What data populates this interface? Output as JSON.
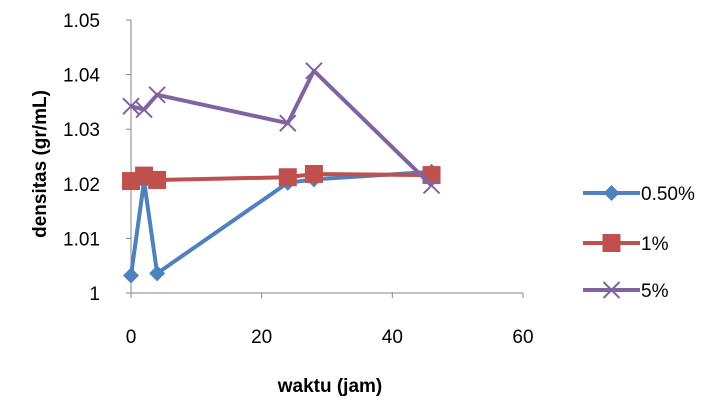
{
  "chart_data": {
    "type": "line",
    "title": "",
    "xlabel": "waktu (jam)",
    "ylabel": "densitas (gr/mL)",
    "xlim": [
      0,
      60
    ],
    "ylim": [
      1,
      1.05
    ],
    "x_ticks": [
      "0",
      "20",
      "40",
      "60"
    ],
    "y_ticks": [
      "1",
      "1.01",
      "1.02",
      "1.03",
      "1.04",
      "1.05"
    ],
    "grid": false,
    "legend_position": "right",
    "series": [
      {
        "name": "0.50%",
        "color": "#4F81BD",
        "marker": "diamond",
        "x": [
          0,
          2,
          4,
          24,
          28,
          46
        ],
        "y": [
          1.0032,
          1.0205,
          1.0036,
          1.0202,
          1.0208,
          1.0222
        ]
      },
      {
        "name": "1%",
        "color": "#C0504D",
        "marker": "square",
        "x": [
          0,
          2,
          4,
          24,
          28,
          46
        ],
        "y": [
          1.0205,
          1.0215,
          1.0207,
          1.0212,
          1.0218,
          1.0216
        ]
      },
      {
        "name": "5%",
        "color": "#8064A2",
        "marker": "x",
        "x": [
          0,
          2,
          4,
          24,
          28,
          46
        ],
        "y": [
          1.0342,
          1.0336,
          1.0363,
          1.0311,
          1.0407,
          1.0197
        ]
      }
    ]
  }
}
